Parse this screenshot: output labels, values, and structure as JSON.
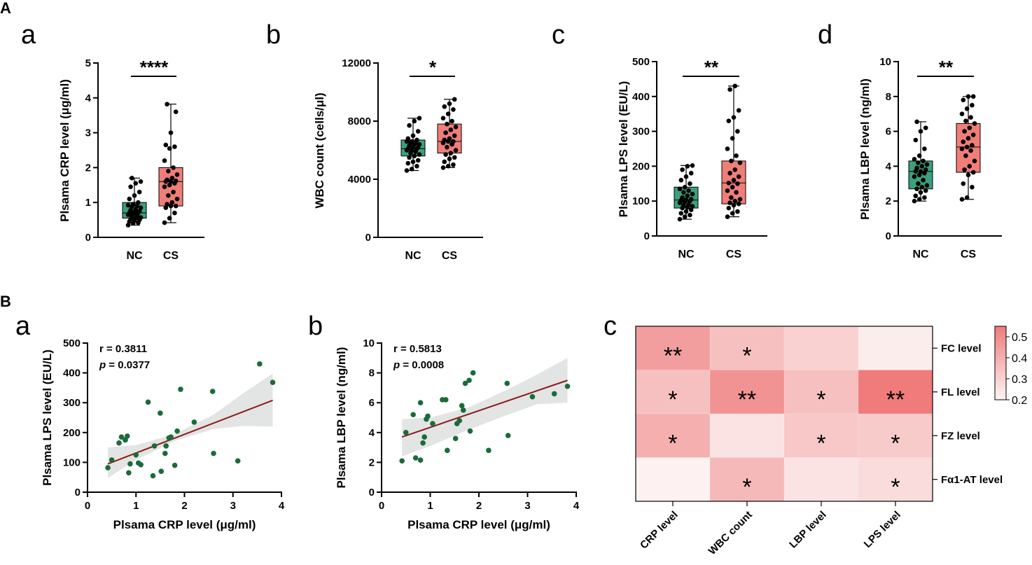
{
  "panels": {
    "A": "A",
    "B": "B"
  },
  "subpanels": {
    "a": "a",
    "b": "b",
    "c": "c",
    "d": "d"
  },
  "chart_data": [
    {
      "type": "boxplot",
      "id": "Aa",
      "ylabel": "Plsama CRP level (μg/ml)",
      "ylim": [
        0,
        5
      ],
      "yticks": [
        0,
        1,
        2,
        3,
        4,
        5
      ],
      "categories": [
        "NC",
        "CS"
      ],
      "significance": "****",
      "groups": [
        {
          "name": "NC",
          "color": "#3aa07e",
          "min": 0.35,
          "q1": 0.55,
          "median": 0.7,
          "q3": 1.0,
          "max": 1.7,
          "points": [
            0.35,
            0.4,
            0.42,
            0.45,
            0.48,
            0.5,
            0.52,
            0.55,
            0.57,
            0.6,
            0.62,
            0.65,
            0.68,
            0.7,
            0.7,
            0.72,
            0.75,
            0.78,
            0.8,
            0.85,
            0.88,
            0.9,
            0.92,
            0.95,
            1.0,
            1.1,
            1.2,
            1.3,
            1.45,
            1.55,
            1.6,
            1.7
          ]
        },
        {
          "name": "CS",
          "color": "#f07e78",
          "min": 0.42,
          "q1": 0.9,
          "median": 1.6,
          "q3": 2.0,
          "max": 3.82,
          "points": [
            0.42,
            0.55,
            0.7,
            0.85,
            0.9,
            0.9,
            0.95,
            1.0,
            1.1,
            1.2,
            1.3,
            1.45,
            1.5,
            1.55,
            1.6,
            1.6,
            1.62,
            1.65,
            1.7,
            1.8,
            1.9,
            2.0,
            2.2,
            2.55,
            2.6,
            2.65,
            3.0,
            3.6,
            3.82
          ]
        }
      ]
    },
    {
      "type": "boxplot",
      "id": "Ab",
      "ylabel": "WBC count (cells/μl)",
      "ylim": [
        0,
        12000
      ],
      "yticks": [
        0,
        4000,
        8000,
        12000
      ],
      "categories": [
        "NC",
        "CS"
      ],
      "significance": "*",
      "groups": [
        {
          "name": "NC",
          "color": "#3aa07e",
          "min": 4600,
          "q1": 5600,
          "median": 6100,
          "q3": 6700,
          "max": 8200,
          "points": [
            4600,
            4700,
            4900,
            5100,
            5200,
            5300,
            5500,
            5600,
            5700,
            5800,
            5900,
            6000,
            6000,
            6100,
            6100,
            6200,
            6200,
            6300,
            6400,
            6400,
            6500,
            6500,
            6600,
            6600,
            6700,
            6800,
            7000,
            7300,
            7700,
            8000,
            8200
          ]
        },
        {
          "name": "CS",
          "color": "#f07e78",
          "min": 4800,
          "q1": 5800,
          "median": 6600,
          "q3": 7800,
          "max": 9500,
          "points": [
            4800,
            4900,
            5000,
            5200,
            5400,
            5500,
            5700,
            5800,
            6000,
            6200,
            6400,
            6500,
            6600,
            6600,
            6700,
            6800,
            7000,
            7200,
            7400,
            7600,
            7800,
            8000,
            8200,
            8500,
            8800,
            9000,
            9200,
            9500
          ]
        }
      ]
    },
    {
      "type": "boxplot",
      "id": "Ac",
      "ylabel": "Plsama LPS level (EU/L)",
      "ylim": [
        0,
        500
      ],
      "yticks": [
        0,
        100,
        200,
        300,
        400,
        500
      ],
      "categories": [
        "NC",
        "CS"
      ],
      "significance": "**",
      "groups": [
        {
          "name": "NC",
          "color": "#3aa07e",
          "min": 48,
          "q1": 80,
          "median": 103,
          "q3": 140,
          "max": 202,
          "points": [
            48,
            55,
            60,
            65,
            70,
            75,
            80,
            82,
            85,
            88,
            90,
            95,
            98,
            100,
            102,
            103,
            105,
            110,
            115,
            120,
            125,
            130,
            135,
            140,
            150,
            160,
            170,
            180,
            190,
            200,
            202
          ]
        },
        {
          "name": "CS",
          "color": "#f07e78",
          "min": 55,
          "q1": 92,
          "median": 152,
          "q3": 215,
          "max": 430,
          "points": [
            55,
            65,
            70,
            80,
            88,
            92,
            95,
            100,
            105,
            110,
            125,
            130,
            140,
            150,
            152,
            160,
            170,
            180,
            190,
            210,
            215,
            230,
            250,
            280,
            300,
            330,
            340,
            360,
            420,
            430
          ]
        }
      ]
    },
    {
      "type": "boxplot",
      "id": "Ad",
      "ylabel": "Plsama LBP level (ng/ml)",
      "ylim": [
        0,
        10
      ],
      "yticks": [
        0,
        2,
        4,
        6,
        8,
        10
      ],
      "categories": [
        "NC",
        "CS"
      ],
      "significance": "**",
      "groups": [
        {
          "name": "NC",
          "color": "#3aa07e",
          "min": 2.0,
          "q1": 2.7,
          "median": 3.7,
          "q3": 4.3,
          "max": 6.55,
          "points": [
            2.0,
            2.1,
            2.2,
            2.3,
            2.5,
            2.6,
            2.7,
            2.8,
            2.9,
            3.0,
            3.2,
            3.4,
            3.5,
            3.6,
            3.7,
            3.7,
            3.8,
            3.9,
            4.0,
            4.1,
            4.2,
            4.3,
            4.4,
            4.6,
            5.0,
            5.5,
            6.0,
            6.2,
            6.55
          ]
        },
        {
          "name": "CS",
          "color": "#f07e78",
          "min": 2.1,
          "q1": 3.65,
          "median": 5.1,
          "q3": 6.45,
          "max": 8.0,
          "points": [
            2.1,
            2.2,
            2.8,
            3.0,
            3.5,
            3.65,
            3.8,
            4.0,
            4.3,
            4.6,
            4.9,
            5.0,
            5.1,
            5.2,
            5.4,
            5.6,
            5.8,
            6.0,
            6.2,
            6.45,
            6.6,
            6.8,
            7.0,
            7.3,
            7.5,
            7.8,
            8.0,
            8.0
          ]
        }
      ]
    },
    {
      "type": "scatter",
      "id": "Ba",
      "xlabel": "Plsama CRP level (μg/ml)",
      "ylabel": "Plsama LPS level (EU/L)",
      "xlim": [
        0,
        4
      ],
      "ylim": [
        0,
        500
      ],
      "xticks": [
        0,
        1,
        2,
        3,
        4
      ],
      "yticks": [
        0,
        100,
        200,
        300,
        400,
        500
      ],
      "r_text": "r = 0.3811",
      "p_label": "p",
      "p_value": " = 0.0377",
      "fit": {
        "x0": 0.42,
        "y0": 95,
        "x1": 3.82,
        "y1": 308
      },
      "band": [
        [
          0.42,
          150
        ],
        [
          1.0,
          158
        ],
        [
          1.8,
          195
        ],
        [
          2.6,
          260
        ],
        [
          3.2,
          330
        ],
        [
          3.82,
          398
        ],
        [
          3.82,
          220
        ],
        [
          3.2,
          222
        ],
        [
          2.6,
          212
        ],
        [
          1.8,
          172
        ],
        [
          1.0,
          108
        ],
        [
          0.42,
          48
        ]
      ],
      "points": [
        [
          0.42,
          82
        ],
        [
          0.5,
          108
        ],
        [
          0.65,
          165
        ],
        [
          0.7,
          185
        ],
        [
          0.78,
          175
        ],
        [
          0.82,
          188
        ],
        [
          0.85,
          65
        ],
        [
          0.88,
          95
        ],
        [
          1.0,
          125
        ],
        [
          1.05,
          98
        ],
        [
          1.1,
          92
        ],
        [
          1.25,
          302
        ],
        [
          1.35,
          55
        ],
        [
          1.38,
          155
        ],
        [
          1.5,
          265
        ],
        [
          1.52,
          70
        ],
        [
          1.6,
          130
        ],
        [
          1.62,
          155
        ],
        [
          1.68,
          182
        ],
        [
          1.72,
          185
        ],
        [
          1.8,
          90
        ],
        [
          1.85,
          205
        ],
        [
          1.92,
          345
        ],
        [
          2.2,
          235
        ],
        [
          2.58,
          338
        ],
        [
          2.6,
          130
        ],
        [
          3.1,
          105
        ],
        [
          3.55,
          430
        ],
        [
          3.82,
          368
        ]
      ]
    },
    {
      "type": "scatter",
      "id": "Bb",
      "xlabel": "Plsama CRP level (μg/ml)",
      "ylabel": "Plsama LBP level (ng/ml)",
      "xlim": [
        0,
        4
      ],
      "ylim": [
        0,
        10
      ],
      "xticks": [
        0,
        1,
        2,
        3,
        4
      ],
      "yticks": [
        0,
        2,
        4,
        6,
        8,
        10
      ],
      "r_text": "r = 0.5813",
      "p_label": "p",
      "p_value": " = 0.0008",
      "fit": {
        "x0": 0.42,
        "y0": 3.7,
        "x1": 3.82,
        "y1": 7.5
      },
      "band": [
        [
          0.42,
          4.9
        ],
        [
          1.0,
          5.0
        ],
        [
          1.8,
          5.7
        ],
        [
          2.6,
          6.9
        ],
        [
          3.2,
          7.9
        ],
        [
          3.82,
          9.0
        ],
        [
          3.82,
          6.0
        ],
        [
          3.2,
          5.9
        ],
        [
          2.6,
          5.2
        ],
        [
          1.8,
          4.2
        ],
        [
          1.0,
          3.1
        ],
        [
          0.42,
          2.4
        ]
      ],
      "points": [
        [
          0.42,
          2.1
        ],
        [
          0.5,
          4.0
        ],
        [
          0.65,
          5.2
        ],
        [
          0.7,
          2.3
        ],
        [
          0.8,
          2.15
        ],
        [
          0.8,
          6.0
        ],
        [
          0.85,
          3.3
        ],
        [
          0.88,
          3.7
        ],
        [
          0.92,
          4.9
        ],
        [
          0.95,
          5.1
        ],
        [
          1.05,
          4.6
        ],
        [
          1.25,
          6.2
        ],
        [
          1.32,
          6.2
        ],
        [
          1.35,
          2.8
        ],
        [
          1.52,
          3.6
        ],
        [
          1.55,
          4.6
        ],
        [
          1.6,
          4.8
        ],
        [
          1.65,
          5.8
        ],
        [
          1.68,
          5.5
        ],
        [
          1.72,
          7.3
        ],
        [
          1.8,
          7.5
        ],
        [
          1.82,
          4.1
        ],
        [
          1.88,
          8.0
        ],
        [
          2.2,
          2.8
        ],
        [
          2.58,
          7.3
        ],
        [
          2.6,
          3.8
        ],
        [
          3.1,
          6.4
        ],
        [
          3.55,
          6.6
        ],
        [
          3.82,
          7.1
        ]
      ]
    },
    {
      "type": "heatmap",
      "id": "Bc",
      "rows": [
        "FC level",
        "FL level",
        "FZ level",
        "Fα1-AT level"
      ],
      "cols": [
        "CRP level",
        "WBC count",
        "LBP level",
        "LPS level"
      ],
      "values": [
        [
          0.45,
          0.35,
          0.3,
          0.22
        ],
        [
          0.35,
          0.48,
          0.35,
          0.55
        ],
        [
          0.4,
          0.25,
          0.33,
          0.32
        ],
        [
          0.21,
          0.37,
          0.25,
          0.27
        ]
      ],
      "stars": [
        [
          "**",
          "*",
          "",
          ""
        ],
        [
          "*",
          "**",
          "*",
          "**"
        ],
        [
          "*",
          "",
          "*",
          "*"
        ],
        [
          "",
          "*",
          "",
          "*"
        ]
      ],
      "colorbar": {
        "min": 0.2,
        "max": 0.55,
        "ticks": [
          "0.5",
          "0.4",
          "0.3",
          "0.2"
        ],
        "color_low": "#fdf4f4",
        "color_high": "#ef7b7b"
      }
    }
  ]
}
